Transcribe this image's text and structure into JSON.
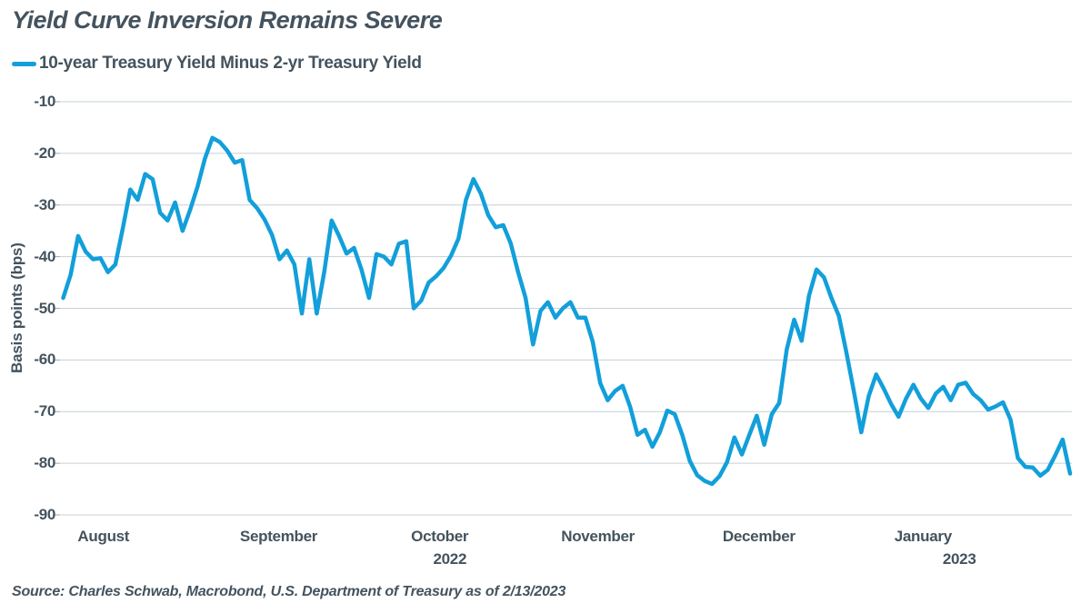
{
  "page": {
    "title": "Yield Curve Inversion Remains Severe",
    "source_note": "Source: Charles Schwab, Macrobond, U.S. Department of Treasury as of 2/13/2023"
  },
  "legend": {
    "series_label": "10-year Treasury Yield Minus 2-yr Treasury Yield"
  },
  "colors": {
    "line": "#129FDA",
    "text": "#44535E",
    "grid": "#C6D0D8",
    "tick": "#9AA9B2",
    "background": "#FFFFFF"
  },
  "chart_data": {
    "type": "line",
    "title": "Yield Curve Inversion Remains Severe",
    "ylabel": "Basis points (bps)",
    "y_unit": "basis points (bps)",
    "ylim": [
      -90,
      -10
    ],
    "y_ticks": [
      -10,
      -20,
      -30,
      -40,
      -50,
      -60,
      -70,
      -80,
      -90
    ],
    "grid": "horizontal-only",
    "legend_position": "top-left",
    "x_range_label": "August 2022 to 2/13/2023, daily",
    "x_ticks": [
      {
        "label": "August",
        "pos": 0.04
      },
      {
        "label": "September",
        "pos": 0.214
      },
      {
        "label": "October",
        "pos": 0.374
      },
      {
        "label": "November",
        "pos": 0.531
      },
      {
        "label": "December",
        "pos": 0.691
      },
      {
        "label": "January",
        "pos": 0.854
      }
    ],
    "x_year_labels": [
      {
        "label": "2022",
        "pos": 0.384
      },
      {
        "label": "2023",
        "pos": 0.89
      }
    ],
    "series": [
      {
        "name": "10-year Treasury Yield Minus 2-yr Treasury Yield",
        "color": "#129FDA",
        "line_width": 4.5,
        "values": [
          -48,
          -43.5,
          -36,
          -39,
          -40.5,
          -40.3,
          -43,
          -41.5,
          -34.5,
          -27,
          -29,
          -24,
          -25,
          -31.5,
          -33,
          -29.5,
          -35,
          -31,
          -26.5,
          -21,
          -17,
          -17.8,
          -19.5,
          -21.8,
          -21.3,
          -29,
          -30.6,
          -32.8,
          -35.8,
          -40.5,
          -38.8,
          -41.5,
          -51,
          -40.5,
          -51,
          -43,
          -33,
          -36,
          -39.4,
          -38.3,
          -42.5,
          -48,
          -39.5,
          -40,
          -41.5,
          -37.5,
          -37,
          -50,
          -48.5,
          -45,
          -43.8,
          -42.2,
          -39.8,
          -36.5,
          -29,
          -25,
          -27.8,
          -32,
          -34.3,
          -33.9,
          -37.4,
          -43,
          -48,
          -57,
          -50.5,
          -48.8,
          -51.8,
          -50,
          -48.8,
          -51.8,
          -51.8,
          -56.5,
          -64.5,
          -67.8,
          -66,
          -65,
          -69,
          -74.5,
          -73.5,
          -76.8,
          -74,
          -69.8,
          -70.5,
          -74.5,
          -79.5,
          -82.3,
          -83.4,
          -84,
          -82.5,
          -79.8,
          -75,
          -78.3,
          -74.5,
          -70.8,
          -76.4,
          -70.5,
          -68.3,
          -58,
          -52.2,
          -56.3,
          -47.5,
          -42.5,
          -44,
          -48,
          -51.5,
          -58.5,
          -66,
          -74,
          -67,
          -62.8,
          -65.5,
          -68.5,
          -71,
          -67.5,
          -64.8,
          -67.5,
          -69.3,
          -66.5,
          -65.2,
          -67.8,
          -64.8,
          -64.4,
          -66.6,
          -67.8,
          -69.6,
          -69,
          -68.2,
          -71.5,
          -79,
          -80.7,
          -80.8,
          -82.4,
          -81.3,
          -78.5,
          -75.4,
          -82
        ]
      }
    ]
  }
}
